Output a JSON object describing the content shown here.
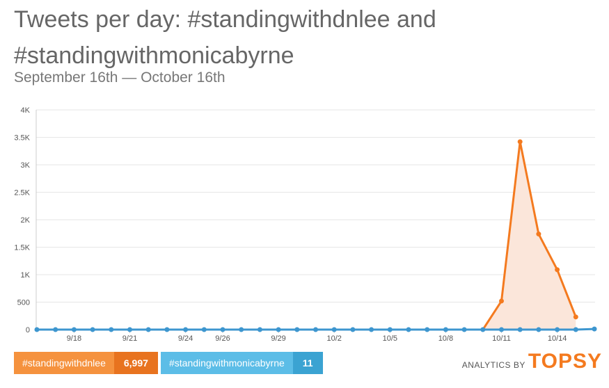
{
  "title": "Tweets per day: #standingwithdnlee and #standingwithmonicabyrne",
  "subtitle": "September 16th — October 16th",
  "chart_data": {
    "type": "area",
    "x": [
      "9/16",
      "9/17",
      "9/18",
      "9/19",
      "9/20",
      "9/21",
      "9/22",
      "9/23",
      "9/24",
      "9/25",
      "9/26",
      "9/27",
      "9/28",
      "9/29",
      "9/30",
      "10/1",
      "10/2",
      "10/3",
      "10/4",
      "10/5",
      "10/6",
      "10/7",
      "10/8",
      "10/9",
      "10/10",
      "10/11",
      "10/12",
      "10/13",
      "10/14",
      "10/15",
      "10/16"
    ],
    "x_tick_labels": [
      "9/18",
      "9/21",
      "9/24",
      "9/26",
      "9/29",
      "10/2",
      "10/5",
      "10/8",
      "10/11",
      "10/14"
    ],
    "y_tick_labels": [
      "0",
      "500",
      "1K",
      "1.5K",
      "2K",
      "2.5K",
      "3K",
      "3.5K",
      "4K"
    ],
    "ylim": [
      0,
      4000
    ],
    "grid": true,
    "series": [
      {
        "name": "#standingwithdnlee",
        "total": "6,997",
        "color": "#f47a1f",
        "fill": "#fbe6da",
        "values": [
          0,
          0,
          0,
          0,
          0,
          0,
          0,
          0,
          0,
          0,
          0,
          0,
          0,
          0,
          0,
          0,
          0,
          0,
          0,
          0,
          0,
          0,
          0,
          0,
          0,
          520,
          3420,
          1740,
          1090,
          230,
          null
        ]
      },
      {
        "name": "#standingwithmonicabyrne",
        "total": "11",
        "color": "#3d96cf",
        "values": [
          0,
          0,
          0,
          0,
          0,
          0,
          0,
          0,
          0,
          0,
          0,
          0,
          0,
          0,
          0,
          0,
          0,
          0,
          0,
          0,
          0,
          0,
          0,
          0,
          0,
          0,
          0,
          0,
          0,
          0,
          11
        ]
      }
    ]
  },
  "legend": {
    "items": [
      {
        "name": "#standingwithdnlee",
        "count": "6,997",
        "bg": "#f5923e",
        "count_bg": "#e8731f"
      },
      {
        "name": "#standingwithmonicabyrne",
        "count": "11",
        "bg": "#5cbde7",
        "count_bg": "#3ba3d2"
      }
    ]
  },
  "branding": {
    "by": "ANALYTICS BY",
    "logo": "TOPSY"
  }
}
